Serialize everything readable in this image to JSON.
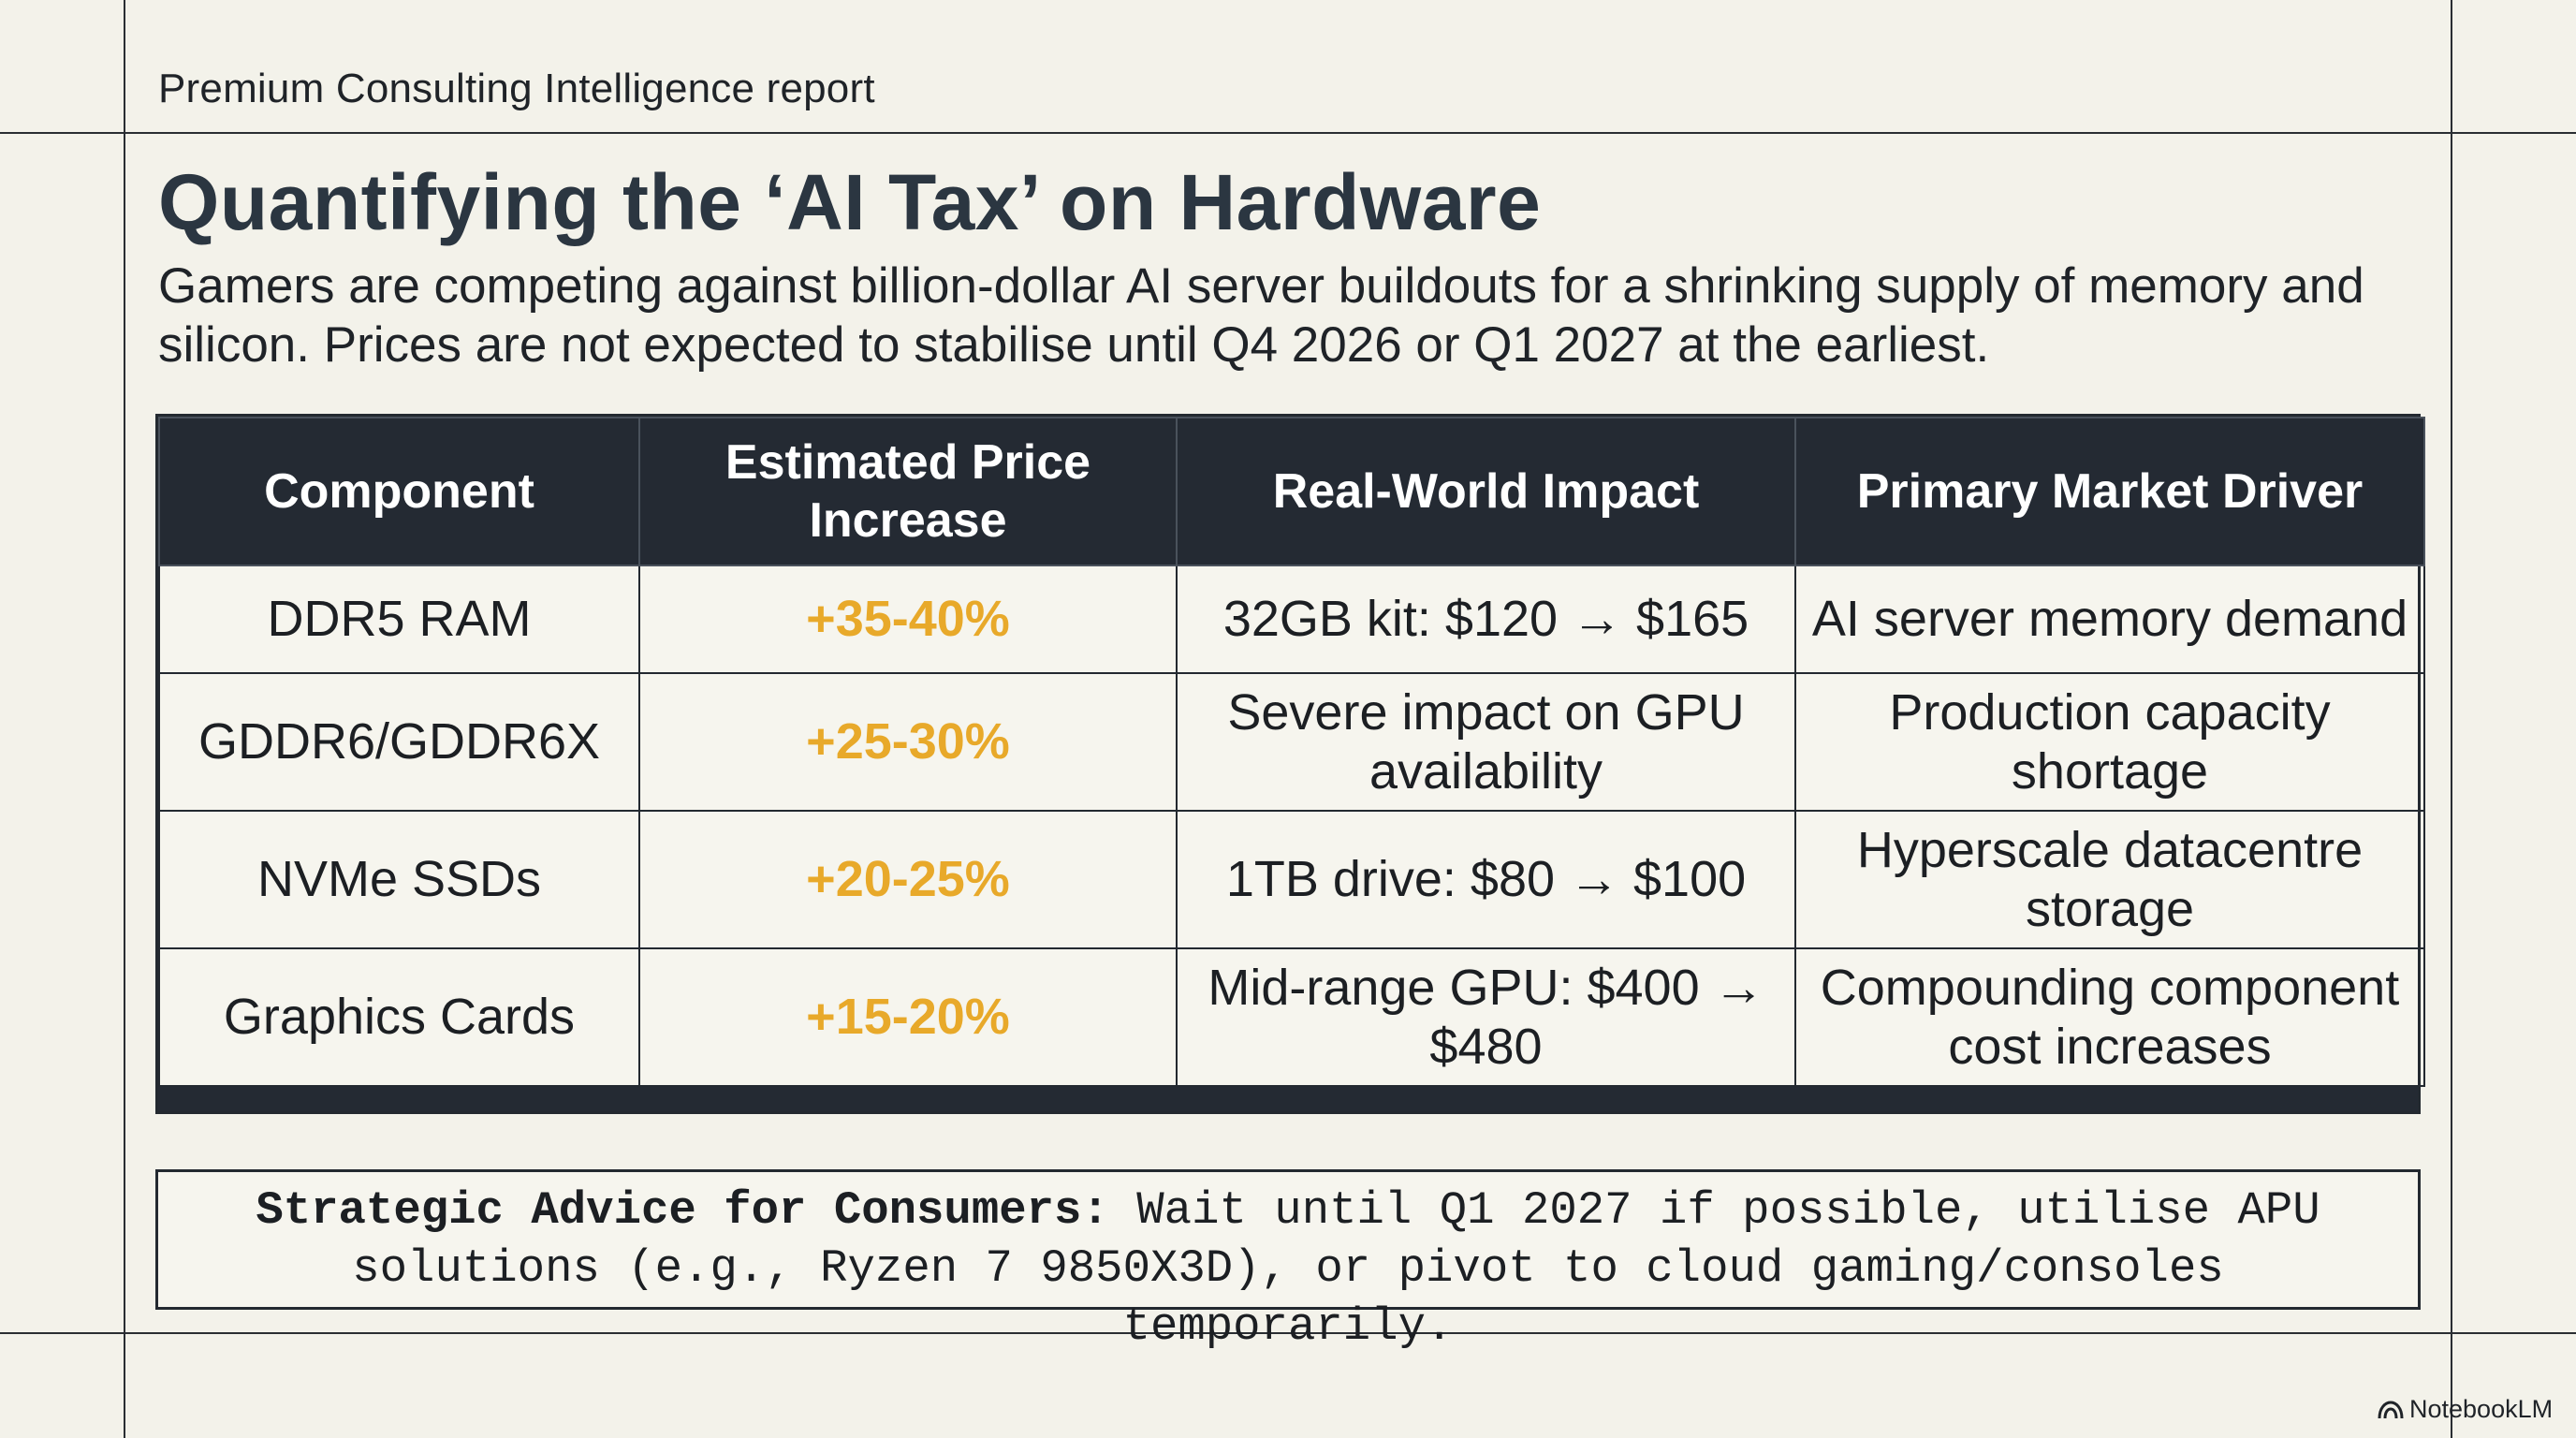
{
  "header": {
    "kicker": "Premium Consulting Intelligence report",
    "title": "Quantifying the ‘AI Tax’ on Hardware",
    "subtitle": "Gamers are competing against billion-dollar AI server buildouts for a shrinking supply of memory and silicon. Prices are not expected to stabilise until Q4 2026 or Q1 2027 at the earliest."
  },
  "table": {
    "columns": [
      "Component",
      "Estimated Price Increase",
      "Real-World Impact",
      "Primary Market Driver"
    ],
    "rows": [
      {
        "component": "DDR5 RAM",
        "increase": "+35-40%",
        "impact": "32GB kit: $120 → $165",
        "driver": "AI server memory demand"
      },
      {
        "component": "GDDR6/GDDR6X",
        "increase": "+25-30%",
        "impact": "Severe impact on GPU availability",
        "driver": "Production capacity shortage"
      },
      {
        "component": "NVMe SSDs",
        "increase": "+20-25%",
        "impact": "1TB drive: $80 → $100",
        "driver": "Hyperscale datacentre storage"
      },
      {
        "component": "Graphics Cards",
        "increase": "+15-20%",
        "impact": "Mid-range GPU: $400 → $480",
        "driver": "Compounding component cost increases"
      }
    ],
    "accent_color": "#e8a92a",
    "header_color": "#242a33"
  },
  "advice": {
    "lead": "Strategic Advice for Consumers:",
    "text": " Wait until Q1 2027 if possible, utilise APU solutions (e.g., Ryzen 7 9850X3D), or pivot to cloud gaming/consoles temporarily."
  },
  "footer": {
    "brand": "NotebookLM",
    "brand_icon": "notebooklm-logo-icon"
  }
}
